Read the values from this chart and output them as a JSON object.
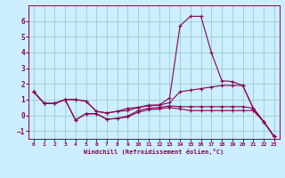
{
  "xlabel": "Windchill (Refroidissement éolien,°C)",
  "xlim": [
    -0.5,
    23.5
  ],
  "ylim": [
    -1.5,
    7.0
  ],
  "yticks": [
    -1,
    0,
    1,
    2,
    3,
    4,
    5,
    6
  ],
  "xticks": [
    0,
    1,
    2,
    3,
    4,
    5,
    6,
    7,
    8,
    9,
    10,
    11,
    12,
    13,
    14,
    15,
    16,
    17,
    18,
    19,
    20,
    21,
    22,
    23
  ],
  "bg_color": "#cceeff",
  "line_color": "#880055",
  "grid_color": "#99cccc",
  "lines": [
    [
      1.5,
      0.75,
      0.75,
      1.0,
      1.0,
      0.9,
      0.25,
      0.15,
      0.25,
      0.45,
      0.5,
      0.65,
      0.65,
      1.1,
      5.7,
      6.3,
      6.3,
      4.0,
      2.2,
      2.15,
      1.9,
      0.45,
      -0.4,
      -1.35
    ],
    [
      1.5,
      0.75,
      0.75,
      1.0,
      1.0,
      0.9,
      0.25,
      0.15,
      0.25,
      0.3,
      0.5,
      0.6,
      0.65,
      0.8,
      1.5,
      1.6,
      1.7,
      1.8,
      1.9,
      1.9,
      1.9,
      0.45,
      -0.4,
      -1.35
    ],
    [
      1.5,
      0.75,
      0.75,
      1.0,
      -0.3,
      0.1,
      0.1,
      -0.25,
      -0.2,
      -0.05,
      0.3,
      0.45,
      0.5,
      0.6,
      0.55,
      0.55,
      0.55,
      0.55,
      0.55,
      0.55,
      0.55,
      0.45,
      -0.4,
      -1.35
    ],
    [
      1.5,
      0.75,
      0.75,
      1.0,
      -0.3,
      0.1,
      0.1,
      -0.25,
      -0.2,
      -0.1,
      0.2,
      0.35,
      0.4,
      0.5,
      0.4,
      0.3,
      0.3,
      0.3,
      0.3,
      0.3,
      0.3,
      0.3,
      -0.4,
      -1.35
    ]
  ]
}
